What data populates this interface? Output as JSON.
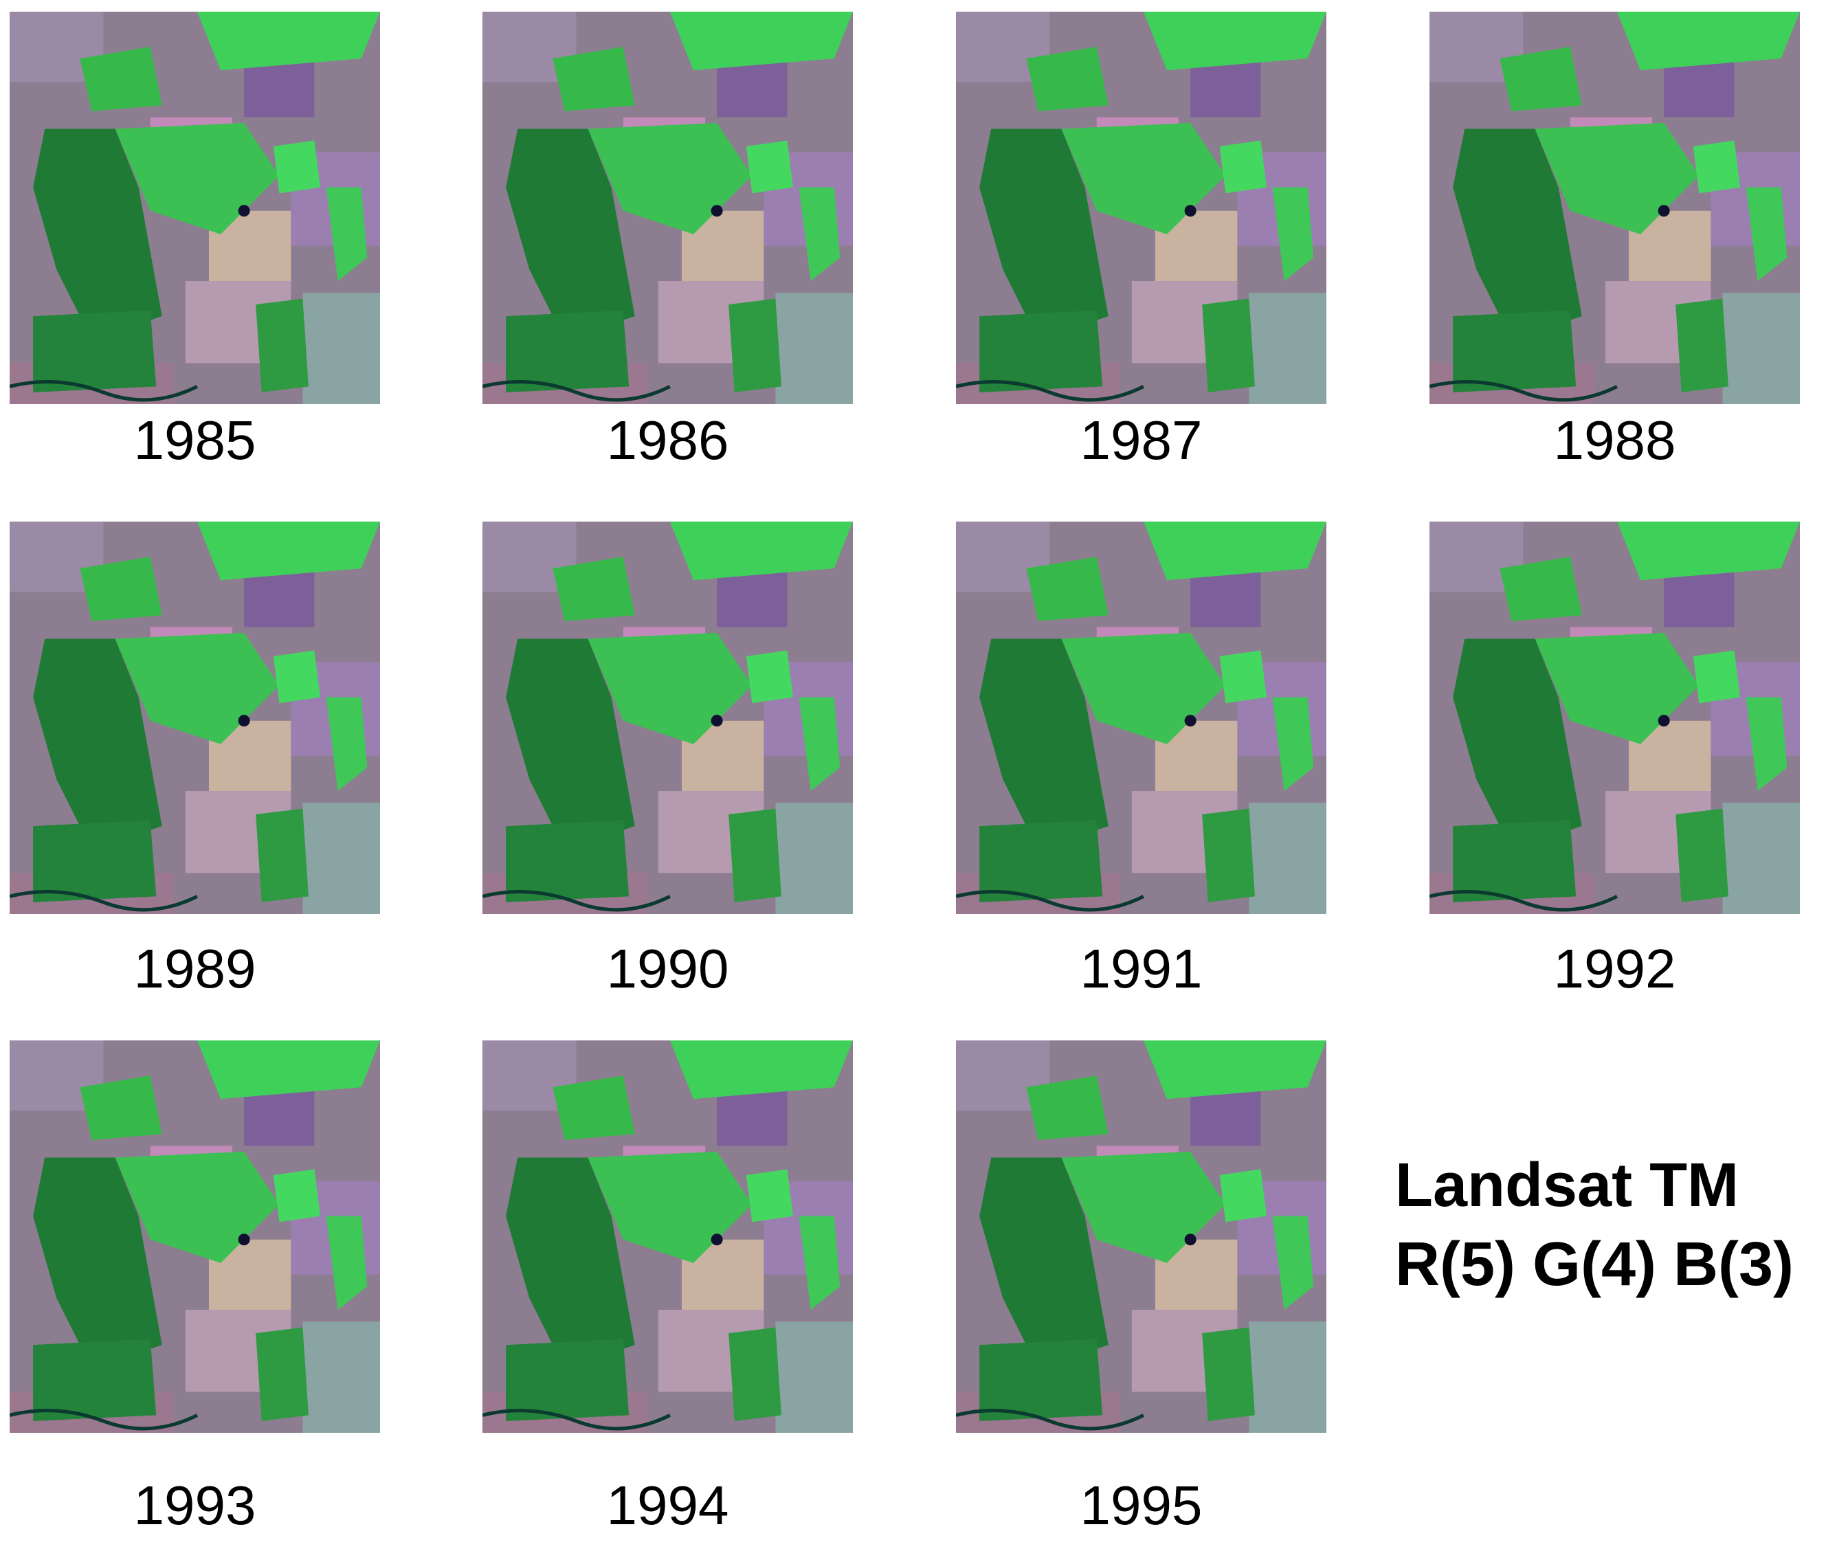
{
  "panels": [
    {
      "label": "1985"
    },
    {
      "label": "1986"
    },
    {
      "label": "1987"
    },
    {
      "label": "1988"
    },
    {
      "label": "1989"
    },
    {
      "label": "1990"
    },
    {
      "label": "1991"
    },
    {
      "label": "1992"
    },
    {
      "label": "1993"
    },
    {
      "label": "1994"
    },
    {
      "label": "1995"
    }
  ],
  "legend": {
    "lines": [
      "Landsat TM",
      "R(5) G(4) B(3)"
    ]
  }
}
